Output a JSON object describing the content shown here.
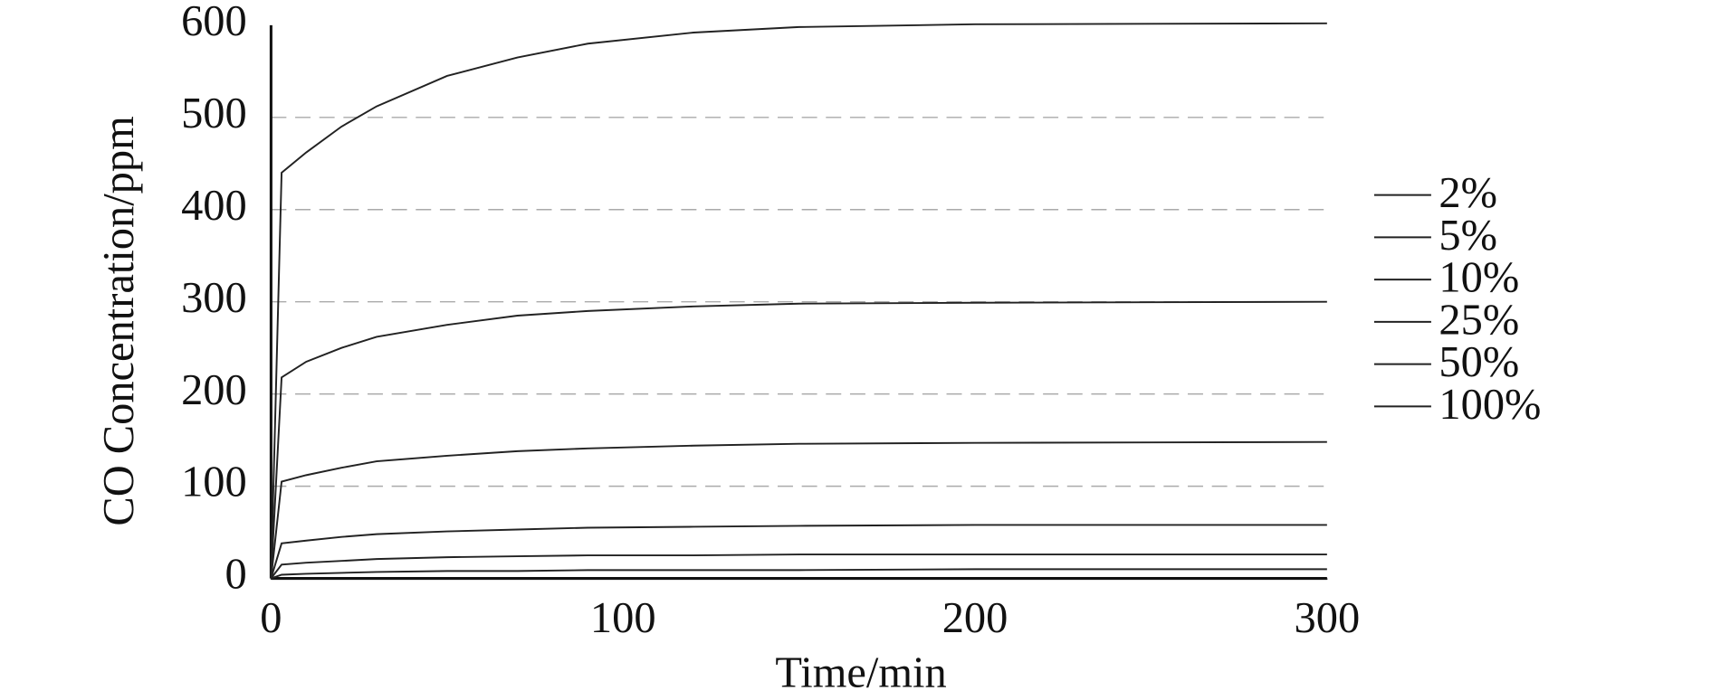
{
  "chart_data": {
    "type": "line",
    "xlabel": "Time/min",
    "ylabel": "CO Concentration/ppm",
    "x": [
      0,
      3,
      10,
      20,
      30,
      50,
      70,
      90,
      120,
      150,
      200,
      300
    ],
    "series": [
      {
        "name": "2%",
        "color": "#222222",
        "values": [
          0,
          4,
          5,
          6,
          7,
          8,
          8,
          9,
          9,
          9,
          10,
          10
        ]
      },
      {
        "name": "5%",
        "color": "#222222",
        "values": [
          0,
          15,
          17,
          19,
          21,
          23,
          24,
          25,
          25,
          26,
          26,
          26
        ]
      },
      {
        "name": "10%",
        "color": "#222222",
        "values": [
          0,
          38,
          41,
          45,
          48,
          51,
          53,
          55,
          56,
          57,
          58,
          58
        ]
      },
      {
        "name": "25%",
        "color": "#222222",
        "values": [
          0,
          105,
          112,
          120,
          127,
          133,
          138,
          141,
          144,
          146,
          147,
          148
        ]
      },
      {
        "name": "50%",
        "color": "#222222",
        "values": [
          0,
          218,
          235,
          250,
          262,
          275,
          285,
          290,
          295,
          298,
          299,
          300
        ]
      },
      {
        "name": "100%",
        "color": "#222222",
        "values": [
          0,
          440,
          462,
          490,
          512,
          545,
          565,
          580,
          592,
          598,
          601,
          602
        ]
      }
    ],
    "xlim": [
      0,
      300
    ],
    "xticks": [
      0,
      100,
      200,
      300
    ],
    "ylim": [
      0,
      600
    ],
    "yticks": [
      0,
      100,
      200,
      300,
      400,
      500,
      600
    ],
    "grid": true,
    "legend": "right"
  }
}
